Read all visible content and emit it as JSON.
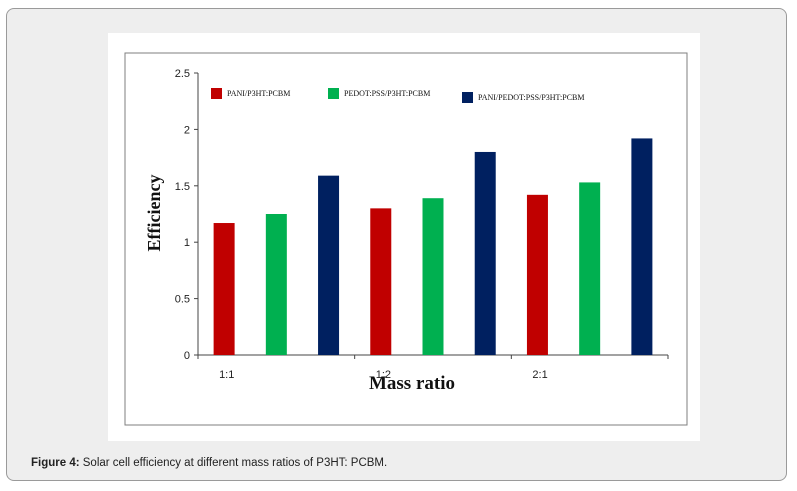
{
  "chart_data": {
    "type": "bar",
    "categories": [
      "1:1",
      "1:2",
      "2:1"
    ],
    "series": [
      {
        "name": "PANI/P3HT:PCBM",
        "color": "#c00000",
        "values": [
          1.17,
          1.3,
          1.42
        ]
      },
      {
        "name": "PEDOT:PSS/P3HT:PCBM",
        "color": "#00b050",
        "values": [
          1.25,
          1.39,
          1.53
        ]
      },
      {
        "name": "PANI/PEDOT:PSS/P3HT:PCBM",
        "color": "#002060",
        "values": [
          1.59,
          1.8,
          1.92
        ]
      }
    ],
    "xlabel": "Mass ratio",
    "ylabel": "Efficiency",
    "ylim": [
      0,
      2.5
    ],
    "yticks": [
      "0",
      "0.5",
      "1",
      "1.5",
      "2",
      "2.5"
    ],
    "legend_position": "top",
    "grid": false
  },
  "caption": {
    "label": "Figure 4:",
    "text": " Solar cell efficiency at different mass ratios of P3HT: PCBM."
  },
  "colors": {
    "card_background": "#eeeeee",
    "card_border": "#9a9a9a",
    "plot_frame": "#7f7f7f"
  }
}
